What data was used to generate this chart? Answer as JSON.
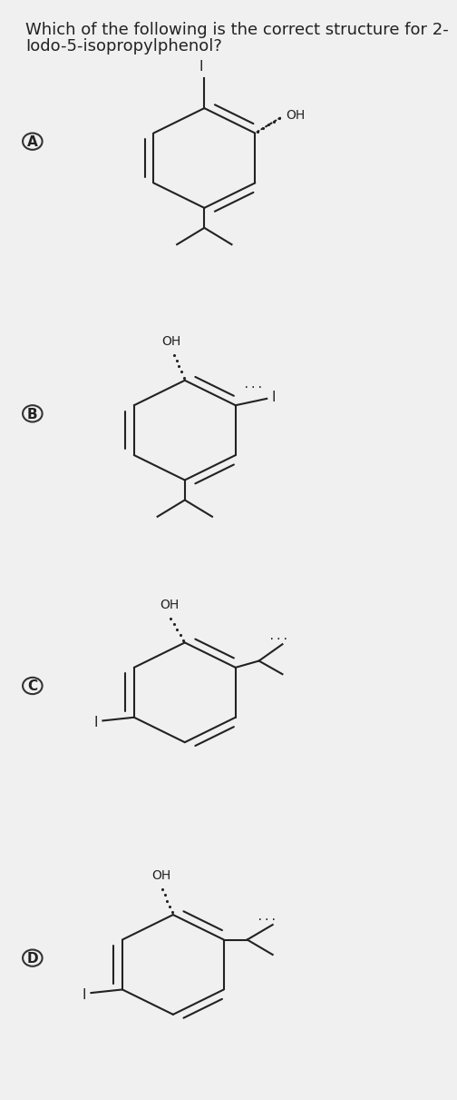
{
  "title": "Which of the following is the correct structure for 2-\nIodo-5-isopropylphenol?",
  "bg_color": "#f0f0f0",
  "panel_bg": "#f5f5f5",
  "options": [
    "A",
    "B",
    "C",
    "D"
  ],
  "option_circle_color": "#333333",
  "line_color": "#222222",
  "text_color": "#222222",
  "font_size_title": 13,
  "font_size_label": 11,
  "font_size_atom": 10
}
